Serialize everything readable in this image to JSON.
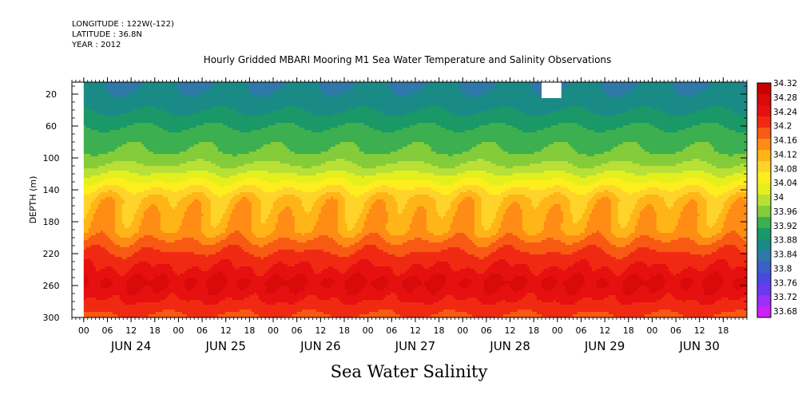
{
  "header": {
    "longitude": "LONGITUDE : 122W(-122)",
    "latitude": "LATITUDE : 36.8N",
    "year": "YEAR : 2012"
  },
  "chart_data": {
    "type": "heatmap",
    "title": "Hourly Gridded MBARI Mooring M1 Sea Water Temperature and Salinity Observations",
    "xlabel": "Sea Water Salinity",
    "ylabel": "DEPTH (m)",
    "x_hour_ticks": [
      "00",
      "06",
      "12",
      "18",
      "00",
      "06",
      "12",
      "18",
      "00",
      "06",
      "12",
      "18",
      "00",
      "06",
      "12",
      "18",
      "00",
      "06",
      "12",
      "18",
      "00",
      "06",
      "12",
      "18",
      "00",
      "06",
      "12",
      "18"
    ],
    "x_day_labels": [
      "JUN 24",
      "JUN 25",
      "JUN 26",
      "JUN 27",
      "JUN 28",
      "JUN 29",
      "JUN 30"
    ],
    "x_range_hours_from_jun23_21": [
      0,
      171
    ],
    "data_start_hour": 3,
    "y_ticks": [
      "20",
      "60",
      "100",
      "140",
      "180",
      "220",
      "260",
      "300"
    ],
    "y_tick_values": [
      20,
      60,
      100,
      140,
      180,
      220,
      260,
      300
    ],
    "ylim": [
      300,
      5
    ],
    "colorbar_levels": [
      "34.32",
      "34.28",
      "34.24",
      "34.2",
      "34.16",
      "34.12",
      "34.08",
      "34.04",
      "34",
      "33.96",
      "33.92",
      "33.88",
      "33.84",
      "33.8",
      "33.76",
      "33.72",
      "33.68"
    ],
    "colorbar_colors": [
      "#c80000",
      "#d80a0a",
      "#e61010",
      "#f02a12",
      "#f85a14",
      "#ff8c14",
      "#ffb418",
      "#ffd42a",
      "#ffee1e",
      "#e4f01e",
      "#b8e036",
      "#84cc3a",
      "#3cb050",
      "#1a9868",
      "#1a8a86",
      "#2e78aa",
      "#3a60c8",
      "#4a48e0",
      "#6a3af0",
      "#9a30f8",
      "#cc20f8"
    ],
    "profile": [
      {
        "depth": 10,
        "salinity": 33.76
      },
      {
        "depth": 30,
        "salinity": 33.78
      },
      {
        "depth": 50,
        "salinity": 33.82
      },
      {
        "depth": 70,
        "salinity": 33.86
      },
      {
        "depth": 90,
        "salinity": 33.88
      },
      {
        "depth": 110,
        "salinity": 33.93
      },
      {
        "depth": 130,
        "salinity": 34.01
      },
      {
        "depth": 150,
        "salinity": 34.09
      },
      {
        "depth": 170,
        "salinity": 34.11
      },
      {
        "depth": 190,
        "salinity": 34.12
      },
      {
        "depth": 205,
        "salinity": 34.17
      },
      {
        "depth": 220,
        "salinity": 34.21
      },
      {
        "depth": 240,
        "salinity": 34.25
      },
      {
        "depth": 255,
        "salinity": 34.29
      },
      {
        "depth": 270,
        "salinity": 34.26
      },
      {
        "depth": 285,
        "salinity": 34.22
      },
      {
        "depth": 300,
        "salinity": 34.19
      }
    ],
    "missing_region": {
      "hours": [
        119,
        124
      ],
      "depths": [
        5,
        25
      ]
    }
  }
}
